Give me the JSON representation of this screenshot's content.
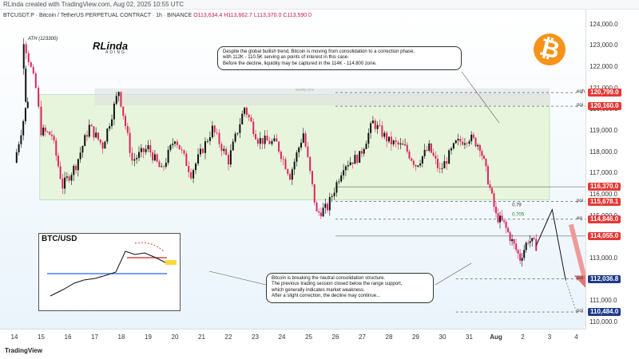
{
  "header": {
    "created_line": "RLinda created with TradingView.com, Aug 02, 2025 10:55 UTC",
    "symbol_line": "BTCUSDT.P · Bitcoin / TetherUS PERPETUAL CONTRACT · 1h · BINANCE",
    "ohlc": "O113,634.4  H113,662.7  L113,370.0  C113,590.0"
  },
  "branding": {
    "logo": "RLinda",
    "logo_sub": "ADING",
    "ath": "ATH (123300)",
    "btc_symbol": "₿",
    "footer": "TradingView"
  },
  "colors": {
    "bull": "#111111",
    "bear": "#e0245e",
    "range": "#e6f5dc",
    "tag_red": "#e53935",
    "tag_blue": "#1e3a8a",
    "accent": "#f7931a"
  },
  "notes": {
    "top": [
      "Despite the global bullish trend, Bitcoin is moving from consolidation to a correction phase,",
      "with 112K - 110.5K serving as points of interest in this case.",
      "Before the decline, liquidity may be captured in the 114K - 114.800 zone."
    ],
    "bottom": [
      "Bitcoin is breaking the neutral consolidation structure.",
      "The previous trading session closed below the range support,",
      "which generally indicates market weakness.",
      "After a slight correction, the decline may continue..."
    ]
  },
  "chart_labels": {
    "fib_0786": "0.79",
    "fib_0705": "0.705",
    "eq": "eq",
    "liquidity": "liquidity zone",
    "inset_title": "BTC/USD"
  },
  "chart_data": {
    "type": "candlestick",
    "title": "BTCUSDT.P · Bitcoin / TetherUS PERPETUAL CONTRACT · 1h · BINANCE",
    "ylim": [
      109700,
      124700
    ],
    "x_ticks": [
      "14",
      "15",
      "16",
      "17",
      "18",
      "19",
      "20",
      "21",
      "22",
      "23",
      "24",
      "25",
      "26",
      "27",
      "28",
      "29",
      "30",
      "31",
      "Aug",
      "2",
      "3",
      "4"
    ],
    "y_ticks": [
      124000,
      123000,
      122000,
      121000,
      120000,
      119000,
      118000,
      117000,
      116000,
      115000,
      113000,
      112000,
      111000,
      110000
    ],
    "range": {
      "high": 120700,
      "low": 115750
    },
    "path": [
      {
        "x": 0.0,
        "p": 117500
      },
      {
        "x": 0.5,
        "p": 120500
      },
      {
        "x": 0.35,
        "p": 123300
      },
      {
        "x": 0.8,
        "p": 121000
      },
      {
        "x": 1.0,
        "p": 119000
      },
      {
        "x": 1.4,
        "p": 118800
      },
      {
        "x": 1.8,
        "p": 116400
      },
      {
        "x": 2.3,
        "p": 117400
      },
      {
        "x": 2.8,
        "p": 119200
      },
      {
        "x": 3.3,
        "p": 118300
      },
      {
        "x": 3.9,
        "p": 120900
      },
      {
        "x": 4.4,
        "p": 117600
      },
      {
        "x": 5.0,
        "p": 118200
      },
      {
        "x": 5.5,
        "p": 117100
      },
      {
        "x": 6.0,
        "p": 118700
      },
      {
        "x": 6.6,
        "p": 117000
      },
      {
        "x": 7.4,
        "p": 119100
      },
      {
        "x": 8.0,
        "p": 117600
      },
      {
        "x": 8.6,
        "p": 120100
      },
      {
        "x": 9.1,
        "p": 118600
      },
      {
        "x": 9.8,
        "p": 118400
      },
      {
        "x": 10.3,
        "p": 116900
      },
      {
        "x": 10.8,
        "p": 118900
      },
      {
        "x": 11.3,
        "p": 115100
      },
      {
        "x": 11.7,
        "p": 115400
      },
      {
        "x": 12.3,
        "p": 117400
      },
      {
        "x": 12.9,
        "p": 117800
      },
      {
        "x": 13.4,
        "p": 119400
      },
      {
        "x": 14.0,
        "p": 118500
      },
      {
        "x": 14.6,
        "p": 118200
      },
      {
        "x": 15.0,
        "p": 117400
      },
      {
        "x": 15.5,
        "p": 118200
      },
      {
        "x": 15.9,
        "p": 117100
      },
      {
        "x": 16.5,
        "p": 118400
      },
      {
        "x": 17.0,
        "p": 118700
      },
      {
        "x": 17.4,
        "p": 118300
      },
      {
        "x": 17.7,
        "p": 116700
      },
      {
        "x": 18.0,
        "p": 115000
      },
      {
        "x": 18.3,
        "p": 114600
      },
      {
        "x": 18.6,
        "p": 113800
      },
      {
        "x": 18.9,
        "p": 113000
      },
      {
        "x": 19.2,
        "p": 113900
      },
      {
        "x": 19.5,
        "p": 113600
      }
    ],
    "levels": [
      {
        "name": "eqh",
        "price": 120799.0,
        "label": "120,799.0",
        "style": "dashed",
        "tag": "red"
      },
      {
        "name": "poi",
        "price": 120160.0,
        "label": "120,160.0",
        "style": "dashed",
        "tag": "red"
      },
      {
        "name": "",
        "price": 116370.0,
        "label": "116,370.0",
        "style": "solid",
        "tag": "red"
      },
      {
        "name": "poi",
        "price": 115678.1,
        "label": "115,678.1",
        "style": "dashed",
        "tag": "red"
      },
      {
        "name": "eq",
        "price": 114846.0,
        "label": "114,846.0",
        "style": "dashed",
        "tag": "red"
      },
      {
        "name": "",
        "price": 114055.0,
        "label": "114,055.0",
        "style": "solid",
        "tag": "red"
      },
      {
        "name": "poi",
        "price": 112036.8,
        "label": "112,036.8",
        "style": "dashed",
        "tag": "blue"
      },
      {
        "name": "poi",
        "price": 110484.0,
        "label": "110,484.0",
        "style": "dashed",
        "tag": "blue"
      }
    ],
    "projection": [
      {
        "x": 19.5,
        "p": 113600
      },
      {
        "x": 20.1,
        "p": 115300
      },
      {
        "x": 20.6,
        "p": 112000
      }
    ],
    "arrow": {
      "from_x": 20.8,
      "from_p": 114600,
      "to_x": 21.3,
      "to_p": 111600
    }
  }
}
